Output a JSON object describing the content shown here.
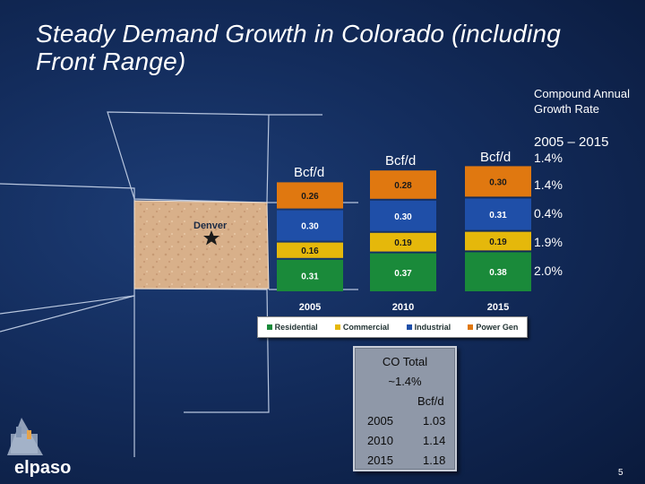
{
  "title": "Steady Demand Growth in Colorado (including Front Range)",
  "map": {
    "city_label": "Denver"
  },
  "unit_labels": {
    "left": "Bcf/d",
    "middle": "Bcf/d",
    "right": "Bcf/d"
  },
  "cagr": {
    "header": "Compound Annual Growth Rate",
    "range": "2005 – 2015",
    "values": [
      "1.4%",
      "1.4%",
      "0.4%",
      "1.9%",
      "2.0%"
    ]
  },
  "chart_data": {
    "type": "bar",
    "stacked": true,
    "categories": [
      "2005",
      "2010",
      "2015"
    ],
    "series": [
      {
        "name": "Residential",
        "values": [
          0.31,
          0.37,
          0.38
        ],
        "color": "#1a8a3a"
      },
      {
        "name": "Commercial",
        "values": [
          0.16,
          0.19,
          0.19
        ],
        "color": "#e5b80b"
      },
      {
        "name": "Industrial",
        "values": [
          0.3,
          0.3,
          0.31
        ],
        "color": "#1f4fa8"
      },
      {
        "name": "Power Gen",
        "values": [
          0.26,
          0.28,
          0.3
        ],
        "color": "#e07810"
      }
    ],
    "ylabel": "Bcf/d",
    "legend_position": "bottom"
  },
  "co_total": {
    "title": "CO Total",
    "growth": "~1.4%",
    "unit": "Bcf/d",
    "rows": [
      {
        "year": "2005",
        "value": "1.03"
      },
      {
        "year": "2010",
        "value": "1.14"
      },
      {
        "year": "2015",
        "value": "1.18"
      }
    ]
  },
  "logo_text": "elpaso",
  "page_number": "5"
}
